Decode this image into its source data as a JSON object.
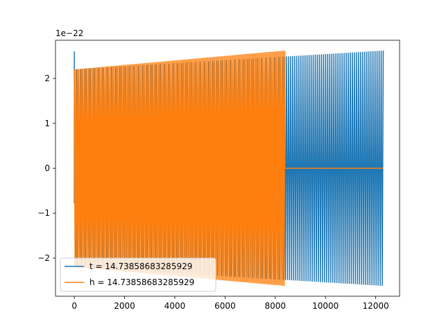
{
  "chart_data": {
    "type": "line",
    "scale_label": "1e−22",
    "xlim": [
      -750,
      12950
    ],
    "ylim": [
      -2.85,
      2.85
    ],
    "xticks": [
      {
        "value": 0,
        "label": "0"
      },
      {
        "value": 2000,
        "label": "2000"
      },
      {
        "value": 4000,
        "label": "4000"
      },
      {
        "value": 6000,
        "label": "6000"
      },
      {
        "value": 8000,
        "label": "8000"
      },
      {
        "value": 10000,
        "label": "10000"
      },
      {
        "value": 12000,
        "label": "12000"
      }
    ],
    "yticks": [
      {
        "value": -2,
        "label": "−2"
      },
      {
        "value": -1,
        "label": "−1"
      },
      {
        "value": 0,
        "label": "0"
      },
      {
        "value": 1,
        "label": "1"
      },
      {
        "value": 2,
        "label": "2"
      }
    ],
    "legend_position": "lower-left",
    "series": [
      {
        "name": "t = 14.73858683285929",
        "color": "#1f77b4",
        "x_start": 0,
        "x_end": 12300,
        "amp_start": 2.2,
        "amp_end": 2.62,
        "spike_amp": 2.6,
        "cycles": 150
      },
      {
        "name": "h = 14.73858683285929",
        "color": "#ff7f0e",
        "x_start": 0,
        "x_end": 8380,
        "amp_start": 2.2,
        "amp_end": 2.62,
        "cycles": 150,
        "flat_after": 8380,
        "flat_until": 12300,
        "flat_value": 0
      }
    ]
  }
}
